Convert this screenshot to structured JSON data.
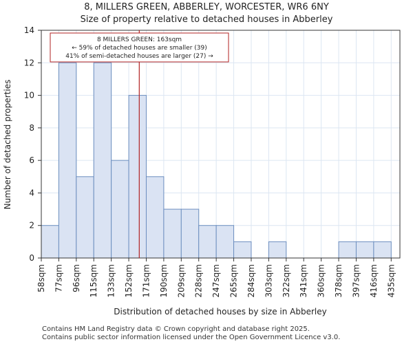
{
  "title_line1": "8, MILLERS GREEN, ABBERLEY, WORCESTER, WR6 6NY",
  "title_line2": "Size of property relative to detached houses in Abberley",
  "footer_line1": "Contains HM Land Registry data © Crown copyright and database right 2025.",
  "footer_line2": "Contains public sector information licensed under the Open Government Licence v3.0.",
  "colors": {
    "bar_fill": "#dae3f3",
    "bar_stroke": "#6c8ebf",
    "marker_line": "#b22222",
    "annotation_border": "#b22222",
    "grid": "#dce6f2"
  },
  "chart_data": {
    "type": "bar",
    "title": "Size of property relative to detached houses in Abberley",
    "xlabel": "Distribution of detached houses by size in Abberley",
    "ylabel": "Number of detached properties",
    "categories": [
      "58sqm",
      "77sqm",
      "96sqm",
      "115sqm",
      "133sqm",
      "152sqm",
      "171sqm",
      "190sqm",
      "209sqm",
      "228sqm",
      "247sqm",
      "265sqm",
      "284sqm",
      "303sqm",
      "322sqm",
      "341sqm",
      "360sqm",
      "378sqm",
      "397sqm",
      "416sqm",
      "435sqm"
    ],
    "values": [
      2,
      12,
      5,
      12,
      6,
      10,
      5,
      3,
      3,
      2,
      2,
      1,
      0,
      1,
      0,
      0,
      0,
      1,
      1,
      1,
      0
    ],
    "ylim": [
      0,
      14
    ],
    "yticks": [
      0,
      2,
      4,
      6,
      8,
      10,
      12,
      14
    ],
    "grid": true,
    "marker": {
      "value_sqm": 163,
      "bin_position": 5.6
    },
    "annotation": {
      "line1": "8 MILLERS GREEN: 163sqm",
      "line2": "← 59% of detached houses are smaller (39)",
      "line3": "41% of semi-detached houses are larger (27) →"
    }
  }
}
